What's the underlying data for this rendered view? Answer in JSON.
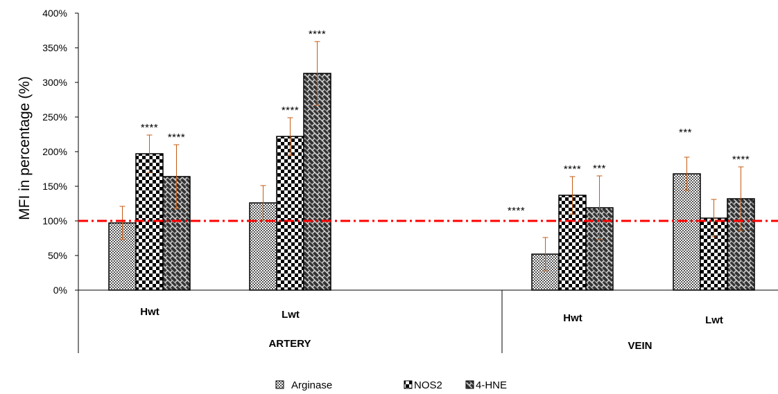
{
  "chart_data": {
    "type": "bar",
    "title": "",
    "ylabel": "MFI in percentage (%)",
    "xlabel": "",
    "ylim": [
      0,
      400
    ],
    "yticks": [
      0,
      50,
      100,
      150,
      200,
      250,
      300,
      350,
      400
    ],
    "ytick_labels": [
      "0%",
      "50%",
      "100%",
      "150%",
      "200%",
      "250%",
      "300%",
      "350%",
      "400%"
    ],
    "reference_line": {
      "value": 100,
      "color": "#ff0000",
      "style": "dash-dot"
    },
    "grid": false,
    "legend_position": "bottom",
    "outer_groups": [
      {
        "label": "ARTERY",
        "subgroups": [
          "Hwt",
          "Lwt"
        ]
      },
      {
        "label": "VEIN",
        "subgroups": [
          "Hwt",
          "Lwt"
        ]
      }
    ],
    "categories": [
      "Hwt",
      "Lwt",
      "Hwt",
      "Lwt"
    ],
    "series": [
      {
        "name": "Arginase",
        "pattern": "fine-checker",
        "values": [
          97,
          126,
          52,
          168
        ],
        "errors": [
          24,
          25,
          24,
          24
        ],
        "significance": [
          "",
          "",
          "****",
          "***"
        ]
      },
      {
        "name": "NOS2",
        "pattern": "checker",
        "values": [
          197,
          222,
          137,
          104
        ],
        "errors": [
          27,
          27,
          27,
          27
        ],
        "significance": [
          "****",
          "****",
          "****",
          ""
        ]
      },
      {
        "name": "4-HNE",
        "pattern": "brick",
        "values": [
          164,
          313,
          119,
          132
        ],
        "errors": [
          46,
          46,
          46,
          46
        ],
        "significance": [
          "****",
          "****",
          "***",
          "****"
        ]
      }
    ],
    "colors": {
      "error_bar": "#c55a11",
      "axis": "#000000",
      "reference": "#ff0000"
    }
  }
}
